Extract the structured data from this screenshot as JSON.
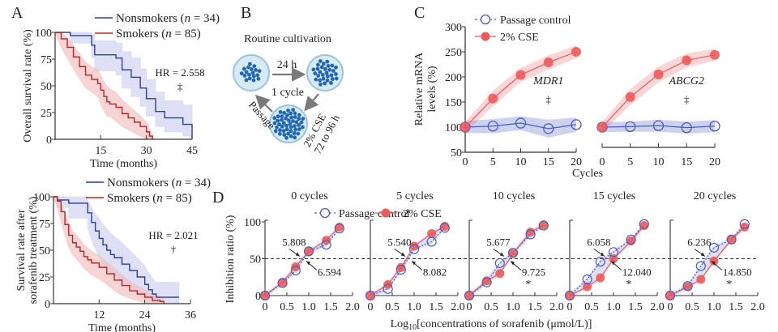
{
  "panel_labels": {
    "A": "A",
    "B": "B",
    "C": "C",
    "D": "D"
  },
  "chart_data": [
    {
      "id": "A1",
      "type": "line",
      "subtype": "kaplan-meier",
      "title": "",
      "xlabel": "Time (months)",
      "ylabel": "Overall survival rate (%)",
      "xlim": [
        0,
        45
      ],
      "ylim": [
        0,
        100
      ],
      "xticks": [
        15,
        30,
        45
      ],
      "yticks": [
        0,
        25,
        50,
        75,
        100
      ],
      "legend_position": "top-right",
      "annotation": "HR = 2.558",
      "significance": "‡",
      "series": [
        {
          "name": "Nonsmokers (n = 34)",
          "color": "#2b3f9e",
          "band_color": "#c8cdf0",
          "x": [
            0,
            5,
            5,
            12,
            12,
            13,
            13,
            20,
            20,
            22,
            22,
            25,
            25,
            28,
            28,
            30,
            30,
            33,
            33,
            36,
            36,
            42,
            42,
            45,
            45
          ],
          "y": [
            100,
            100,
            97,
            97,
            88,
            88,
            79,
            79,
            76,
            76,
            65,
            65,
            58,
            58,
            48,
            48,
            38,
            38,
            26,
            26,
            20,
            20,
            14,
            14,
            0
          ],
          "upper": [
            100,
            100,
            100,
            100,
            98,
            98,
            92,
            92,
            90,
            90,
            82,
            82,
            76,
            76,
            66,
            66,
            56,
            56,
            44,
            44,
            36,
            36,
            32,
            32,
            32
          ],
          "lower": [
            100,
            100,
            90,
            90,
            76,
            76,
            64,
            64,
            60,
            60,
            48,
            48,
            40,
            40,
            31,
            31,
            22,
            22,
            12,
            12,
            7,
            7,
            3,
            3,
            0
          ]
        },
        {
          "name": "Smokers (n = 85)",
          "color": "#b82525",
          "band_color": "#f2b9b9",
          "x": [
            0,
            2,
            4,
            6,
            8,
            10,
            12,
            14,
            15,
            16,
            17,
            18,
            20,
            22,
            24,
            26,
            28,
            30,
            31,
            32
          ],
          "y": [
            100,
            94,
            86,
            77,
            68,
            60,
            56,
            52,
            46,
            40,
            35,
            33,
            30,
            24,
            20,
            16,
            12,
            7,
            3,
            0
          ],
          "upper": [
            100,
            100,
            95,
            88,
            80,
            72,
            68,
            65,
            60,
            54,
            50,
            47,
            44,
            37,
            32,
            27,
            22,
            16,
            10,
            4
          ],
          "lower": [
            100,
            86,
            76,
            66,
            57,
            48,
            44,
            40,
            33,
            27,
            22,
            21,
            17,
            12,
            9,
            6,
            3,
            0,
            0,
            0
          ]
        }
      ]
    },
    {
      "id": "A2",
      "type": "line",
      "subtype": "kaplan-meier",
      "xlabel": "Time (months)",
      "ylabel": "Survival rate after sorafenib treatment (%)",
      "ylabel_lines": [
        "Survival rate  after",
        "sorafenib treatment (%)"
      ],
      "xlim": [
        0,
        36
      ],
      "ylim": [
        0,
        100
      ],
      "xticks": [
        12,
        24,
        36
      ],
      "yticks": [
        0,
        25,
        50,
        75,
        100
      ],
      "legend_position": "top-right",
      "annotation": "HR = 2.021",
      "significance": "†",
      "series": [
        {
          "name": "Nonsmokers (n = 34)",
          "color": "#2b3f9e",
          "band_color": "#c8cdf0",
          "x": [
            0,
            1,
            1,
            4,
            4,
            9,
            9,
            10,
            11,
            12,
            13,
            14,
            15,
            16,
            18,
            20,
            22,
            24,
            25,
            26,
            27,
            33
          ],
          "y": [
            100,
            100,
            97,
            97,
            94,
            94,
            85,
            76,
            68,
            61,
            55,
            50,
            46,
            43,
            37,
            31,
            25,
            18,
            13,
            9,
            6,
            6
          ],
          "upper": [
            100,
            100,
            100,
            100,
            100,
            100,
            96,
            90,
            84,
            79,
            74,
            70,
            66,
            63,
            57,
            50,
            43,
            35,
            29,
            24,
            20,
            20
          ],
          "lower": [
            100,
            100,
            90,
            90,
            80,
            80,
            70,
            60,
            51,
            44,
            38,
            33,
            29,
            26,
            21,
            16,
            11,
            6,
            3,
            1,
            0,
            0
          ]
        },
        {
          "name": "Smokers (n = 85)",
          "color": "#b82525",
          "band_color": "#f2b9b9",
          "x": [
            0,
            1,
            2,
            3,
            4,
            5,
            6,
            7,
            8,
            9,
            10,
            12,
            14,
            16,
            18,
            20,
            22,
            24,
            26,
            28,
            29
          ],
          "y": [
            100,
            96,
            86,
            74,
            64,
            57,
            53,
            49,
            44,
            41,
            38,
            34,
            28,
            22,
            17,
            12,
            9,
            6,
            3,
            2,
            0
          ],
          "upper": [
            100,
            100,
            94,
            84,
            75,
            68,
            64,
            60,
            55,
            52,
            49,
            45,
            39,
            33,
            27,
            21,
            17,
            13,
            9,
            7,
            5
          ],
          "lower": [
            100,
            90,
            77,
            64,
            53,
            46,
            42,
            38,
            33,
            30,
            27,
            23,
            18,
            12,
            8,
            5,
            3,
            1,
            0,
            0,
            0
          ]
        }
      ]
    },
    {
      "id": "C",
      "type": "line",
      "xlabel": "Cycles",
      "ylabel": "Relative mRNA levels (%)",
      "ylabel_lines": [
        "Relative  mRNA",
        "levels (%)"
      ],
      "ylim": [
        50,
        300
      ],
      "yticks": [
        50,
        100,
        150,
        200,
        250,
        300
      ],
      "xticks": [
        0,
        5,
        10,
        15,
        20
      ],
      "legend_position": "top-left",
      "subplots": [
        {
          "gene": "MDR1",
          "significance": "‡",
          "series": [
            {
              "name": "Passage control",
              "marker": "open-circle",
              "color": "#4a5cc4",
              "x": [
                0,
                5,
                10,
                15,
                20
              ],
              "y": [
                100,
                102,
                108,
                97,
                105
              ],
              "err": [
                12,
                14,
                14,
                18,
                14
              ]
            },
            {
              "name": "2% CSE",
              "marker": "filled-circle",
              "color": "#ee5a5a",
              "x": [
                0,
                5,
                10,
                15,
                20
              ],
              "y": [
                100,
                157,
                204,
                229,
                250
              ],
              "err": [
                10,
                16,
                14,
                14,
                13
              ]
            }
          ]
        },
        {
          "gene": "ABCG2",
          "significance": "‡",
          "series": [
            {
              "name": "Passage control",
              "marker": "open-circle",
              "color": "#4a5cc4",
              "x": [
                0,
                5,
                10,
                15,
                20
              ],
              "y": [
                100,
                101,
                103,
                99,
                102
              ],
              "err": [
                10,
                10,
                12,
                12,
                12
              ]
            },
            {
              "name": "2% CSE",
              "marker": "filled-circle",
              "color": "#ee5a5a",
              "x": [
                0,
                5,
                10,
                15,
                20
              ],
              "y": [
                100,
                160,
                205,
                233,
                244
              ],
              "err": [
                10,
                16,
                16,
                14,
                12
              ]
            }
          ]
        }
      ]
    },
    {
      "id": "D",
      "type": "line",
      "xlabel": "Log10[concentrations of sorafenib (μmol/L)]",
      "xlabel_parts": {
        "pre": "Log",
        "sub": "10",
        "post": "[concentrations of sorafenib (μmol/L)]"
      },
      "ylabel": "Inhibition ratio (%)",
      "ylim": [
        0,
        100
      ],
      "xlim": [
        0,
        2.0
      ],
      "yticks": [
        0,
        50,
        100
      ],
      "xticks": [
        0,
        0.5,
        1.0,
        1.5,
        2.0
      ],
      "xtick_labels": [
        "0",
        "0.5",
        "1.0",
        "1.5",
        "2.0"
      ],
      "reference_line_y": 50,
      "legend": [
        "Passage control",
        "2% CSE"
      ],
      "legend_position": "top",
      "subplots": [
        {
          "title": "0 cycles",
          "ic50_control": "5.808",
          "ic50_cse": "6.594",
          "significance": "",
          "x": [
            0,
            0.4,
            0.7,
            1.0,
            1.4,
            1.7
          ],
          "control": [
            0,
            17,
            34,
            60,
            69,
            91
          ],
          "cse": [
            0,
            18,
            39,
            60,
            75,
            93
          ]
        },
        {
          "title": "5 cycles",
          "ic50_control": "5.540",
          "ic50_cse": "8.082",
          "significance": "",
          "x": [
            0,
            0.4,
            0.7,
            1.0,
            1.4,
            1.7
          ],
          "control": [
            0,
            9,
            35,
            63,
            73,
            92
          ],
          "cse": [
            0,
            15,
            38,
            67,
            84,
            94
          ]
        },
        {
          "title": "10 cycles",
          "ic50_control": "5.677",
          "ic50_cse": "9.725",
          "significance": "*",
          "x": [
            0,
            0.4,
            0.7,
            1.0,
            1.4,
            1.7
          ],
          "control": [
            0,
            18,
            44,
            58,
            83,
            95
          ],
          "cse": [
            0,
            20,
            30,
            57,
            86,
            96
          ]
        },
        {
          "title": "15 cycles",
          "ic50_control": "6.058",
          "ic50_cse": "12.040",
          "significance": "*",
          "x": [
            0,
            0.4,
            0.7,
            1.0,
            1.4,
            1.7
          ],
          "control": [
            0,
            22,
            46,
            59,
            76,
            97
          ],
          "cse": [
            0,
            12,
            24,
            50,
            74,
            95
          ]
        },
        {
          "title": "20 cycles",
          "ic50_control": "6.236",
          "ic50_cse": "14.850",
          "significance": "*",
          "x": [
            0,
            0.4,
            0.7,
            1.0,
            1.4,
            1.7
          ],
          "control": [
            0,
            13,
            40,
            65,
            76,
            97
          ],
          "cse": [
            0,
            12,
            22,
            47,
            76,
            93
          ]
        }
      ]
    }
  ],
  "diagram_B": {
    "title": "Routine cultivation",
    "arrow_top_label": "24 h",
    "center_label": "1 cycle",
    "right_label_line1": "2% CSE",
    "right_label_line2": "72 to 96 h",
    "left_label": "Passage",
    "dish_fill": "#d6ebf5",
    "cell_color": "#2266b8"
  },
  "colors": {
    "control": "#4a5cc4",
    "cse": "#ee5a5a",
    "nonsmoker": "#2b3f9e",
    "smoker": "#b82525"
  }
}
